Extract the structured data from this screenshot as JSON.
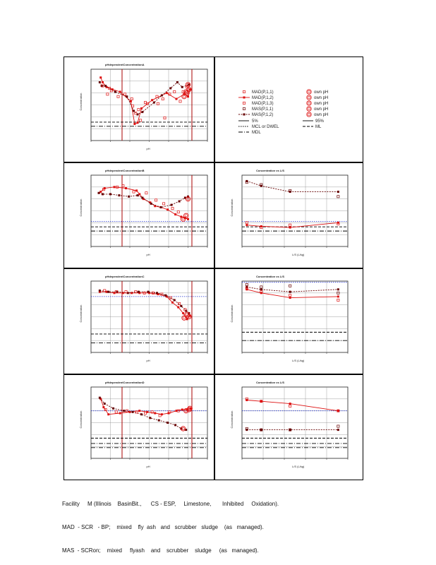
{
  "caption": {
    "line1": "Facility     M (Illinois    BasinBit.,      CS - ESP,     Limestone,       Inhibited     Oxidation).",
    "line2": "MAD  - SCR   - BP;    mixed    fly  ash   and   scrubber   sludge    (as   managed).",
    "line3": "MAS  - SCRon;    mixed     flyash    and    scrubber    sludge     (as   managed)."
  },
  "legend": {
    "series": [
      "MAD(P,1,1)",
      "MAD(P,1,2)",
      "MAD(P,1,3)",
      "MAS(P,1,1)",
      "MAS(P,1,2)"
    ],
    "own_ph": [
      "own pH",
      "own pH",
      "own pH",
      "own pH",
      "own pH"
    ],
    "lines": [
      "5%",
      "95%",
      "MCL or DWEL",
      "ML",
      "MDL"
    ]
  },
  "colors": {
    "mad": "#dd1111",
    "mas": "#660000",
    "blue": "#2233cc",
    "grid": "#888888"
  },
  "chart_data": [
    {
      "type": "scatter",
      "panel": "row1-left",
      "title": "pHdependentConcentrationA",
      "xlabel": "pH",
      "ylabel": "Concentration",
      "xlim": [
        2,
        14
      ],
      "ylim": [
        -3,
        3
      ],
      "vlines": [
        5.2,
        12.4
      ],
      "hlines_black": [
        -1.45,
        -1.8
      ],
      "series": [
        {
          "name": "MAD(P,1,2)",
          "style": "solid",
          "x": [
            3.0,
            3.2,
            3.6,
            4.2,
            5.0,
            6.1,
            6.5,
            6.8,
            7.2,
            8.3,
            9.8,
            10.8,
            11.6,
            12.0,
            12.2
          ],
          "y": [
            2.3,
            1.9,
            1.5,
            1.3,
            1.1,
            0.3,
            -1.6,
            -1.5,
            -0.3,
            0.4,
            1.0,
            0.5,
            0.9,
            0.7,
            1.3
          ]
        },
        {
          "name": "MAS(P,1,2)",
          "style": "dashed",
          "x": [
            2.9,
            3.1,
            3.5,
            4.5,
            5.7,
            6.4,
            6.8,
            7.3,
            8.5,
            9.3,
            10.2,
            10.9,
            11.4,
            12.1
          ],
          "y": [
            1.9,
            1.6,
            1.6,
            1.1,
            0.7,
            -0.5,
            -0.8,
            -0.6,
            0.2,
            0.8,
            1.4,
            1.9,
            1.5,
            1.7
          ]
        },
        {
          "name": "MAD(P,1,1)",
          "style": "marker",
          "x": [
            3.2,
            3.7,
            4.1,
            5.5,
            6.2,
            6.6,
            7.1,
            7.8,
            8.8,
            9.6,
            10.6,
            11.2
          ],
          "y": [
            1.6,
            0.9,
            1.2,
            0.9,
            0.5,
            -0.7,
            -1.3,
            0.1,
            0.7,
            -1.1,
            1.1,
            0.3
          ]
        },
        {
          "name": "MAD(P,1,3)",
          "style": "marker",
          "x": [
            3.9,
            4.8,
            6.3,
            6.9,
            7.6,
            8.9,
            9.4,
            10.1,
            11.5,
            11.9
          ],
          "y": [
            1.4,
            0.7,
            -0.1,
            -0.4,
            0.2,
            0.1,
            0.5,
            0.9,
            1.1,
            1.5
          ]
        },
        {
          "name": "own pH",
          "style": "circle",
          "x": [
            11.6,
            11.9,
            12.1,
            12.0,
            11.8
          ],
          "y": [
            0.7,
            1.0,
            1.3,
            1.7,
            1.1
          ]
        }
      ]
    },
    {
      "type": "scatter",
      "panel": "row2-left",
      "title": "pHdependentConcentrationB",
      "xlabel": "pH",
      "ylabel": "Concentration",
      "xlim": [
        2,
        14
      ],
      "ylim": [
        -3,
        3
      ],
      "vlines": [
        5.2,
        12.4
      ],
      "hlines_blue": [
        -0.9
      ],
      "hlines_black": [
        -1.35,
        -1.7
      ],
      "series": [
        {
          "name": "MAD(P,1,2)",
          "style": "solid",
          "x": [
            3.0,
            3.4,
            4.4,
            5.6,
            6.7,
            7.0,
            7.4,
            8.1,
            8.6,
            9.2,
            9.9,
            10.7,
            11.3,
            11.7,
            12.0
          ],
          "y": [
            1.6,
            1.9,
            2.0,
            1.9,
            1.7,
            1.4,
            1.0,
            0.7,
            0.4,
            0.3,
            0.1,
            -0.3,
            -0.5,
            -0.6,
            -0.7
          ]
        },
        {
          "name": "MAS(P,1,2)",
          "style": "dashed",
          "x": [
            2.8,
            3.2,
            4.0,
            4.9,
            5.9,
            6.8,
            7.3,
            8.2,
            9.2,
            10.3,
            11.1,
            11.7,
            12.0
          ],
          "y": [
            1.5,
            1.4,
            1.4,
            1.3,
            1.2,
            1.3,
            1.1,
            0.6,
            0.3,
            0.5,
            0.8,
            1.1,
            1.2
          ]
        },
        {
          "name": "MAD(P,1,1)",
          "style": "marker",
          "x": [
            3.3,
            4.7,
            5.3,
            6.4,
            7.7,
            8.7,
            9.5,
            10.4,
            11.0
          ],
          "y": [
            1.8,
            2.0,
            2.1,
            1.6,
            1.5,
            0.9,
            0.6,
            0.2,
            -0.1
          ]
        },
        {
          "name": "own pH",
          "style": "circle",
          "x": [
            11.5,
            11.8,
            12.0
          ],
          "y": [
            -0.7,
            -0.4,
            1.0
          ]
        }
      ]
    },
    {
      "type": "line",
      "panel": "row2-right",
      "title": "Concentration vs L/S",
      "xlabel": "L/S   (L/kg)",
      "ylabel": "Concentration",
      "xlim": [
        0,
        11
      ],
      "ylim": [
        -3,
        3
      ],
      "hlines_blue": [
        -0.9
      ],
      "hlines_black": [
        -1.35,
        -1.7
      ],
      "series": [
        {
          "name": "MAS",
          "style": "dashed",
          "x": [
            0.5,
            2,
            5,
            10
          ],
          "y": [
            2.5,
            2.1,
            1.6,
            1.6
          ]
        },
        {
          "name": "MAD",
          "style": "solid",
          "x": [
            0.5,
            2,
            5,
            10
          ],
          "y": [
            -1.2,
            -1.3,
            -1.4,
            -1.0
          ]
        },
        {
          "name": "MAD-marker",
          "style": "marker",
          "x": [
            0.5,
            2,
            5,
            10
          ],
          "y": [
            -1.0,
            -1.4,
            -1.2,
            -1.1
          ]
        },
        {
          "name": "MAS-marker",
          "style": "marker",
          "x": [
            0.5,
            2,
            5,
            10
          ],
          "y": [
            2.4,
            2.2,
            1.7,
            1.2
          ]
        }
      ]
    },
    {
      "type": "scatter",
      "panel": "row3-left",
      "title": "pHdependentConcentrationC",
      "xlabel": "pH",
      "ylabel": "Concentration",
      "xlim": [
        2,
        14
      ],
      "ylim": [
        -3,
        3
      ],
      "vlines": [
        5.2,
        12.4
      ],
      "hlines_blue": [
        1.7
      ],
      "hlines_black": [
        -1.45,
        -2.2
      ],
      "series": [
        {
          "name": "MAD(P,1,2)",
          "style": "solid",
          "x": [
            2.9,
            3.6,
            4.4,
            5.3,
            6.2,
            7.0,
            8.0,
            8.9,
            9.8,
            10.4,
            11.0,
            11.5,
            11.9,
            12.2
          ],
          "y": [
            2.1,
            2.1,
            2.0,
            2.0,
            2.0,
            2.0,
            2.0,
            1.9,
            1.7,
            1.2,
            0.8,
            0.3,
            -0.2,
            0.1
          ]
        },
        {
          "name": "MAS(P,1,2)",
          "style": "dashed",
          "x": [
            2.9,
            3.8,
            4.7,
            5.8,
            6.9,
            7.9,
            8.8,
            9.7,
            10.6,
            11.3,
            11.8,
            12.1
          ],
          "y": [
            2.2,
            2.1,
            2.1,
            2.0,
            2.1,
            2.1,
            2.0,
            1.8,
            1.4,
            0.9,
            0.5,
            0.3
          ]
        },
        {
          "name": "MAD(P,1,1)",
          "style": "marker",
          "x": [
            3.4,
            4.6,
            5.6,
            6.6,
            7.5,
            8.4,
            9.3,
            10.2,
            11.1,
            11.7
          ],
          "y": [
            2.2,
            2.1,
            2.1,
            2.1,
            2.0,
            2.0,
            1.9,
            1.6,
            1.1,
            0.6
          ]
        },
        {
          "name": "own pH",
          "style": "circle",
          "x": [
            11.6,
            11.9,
            12.1
          ],
          "y": [
            -0.1,
            0.2,
            0.0
          ]
        }
      ]
    },
    {
      "type": "line",
      "panel": "row3-right",
      "title": "Concentration vs L/S",
      "xlabel": "L/S   (L/kg)",
      "ylabel": "Concentration",
      "xlim": [
        0,
        11
      ],
      "ylim": [
        -3,
        3
      ],
      "hlines_blue": [
        2.9
      ],
      "hlines_black": [
        -1.3,
        -2.0
      ],
      "series": [
        {
          "name": "MAS",
          "style": "dashed",
          "x": [
            0.5,
            2,
            5,
            10
          ],
          "y": [
            2.5,
            2.3,
            2.1,
            2.3
          ]
        },
        {
          "name": "MAD",
          "style": "solid",
          "x": [
            0.5,
            2,
            5,
            10
          ],
          "y": [
            2.3,
            2.0,
            1.6,
            1.7
          ]
        },
        {
          "name": "MAD-marker",
          "style": "marker",
          "x": [
            0.5,
            2,
            5,
            10
          ],
          "y": [
            2.4,
            2.1,
            1.8,
            1.4
          ]
        },
        {
          "name": "MAS-marker",
          "style": "marker",
          "x": [
            0.5,
            2,
            5,
            10
          ],
          "y": [
            2.7,
            2.5,
            2.6,
            2.0
          ]
        }
      ]
    },
    {
      "type": "scatter",
      "panel": "row4-left",
      "title": "pHdependentConcentrationD",
      "xlabel": "pH",
      "ylabel": "Concentration",
      "xlim": [
        2,
        14
      ],
      "ylim": [
        -3,
        3
      ],
      "vlines": [
        5.2,
        12.4
      ],
      "hlines_blue": [
        1.0
      ],
      "hlines_black": [
        -1.3,
        -1.75,
        -2.1
      ],
      "series": [
        {
          "name": "MAD(P,1,2)",
          "style": "solid",
          "x": [
            3.0,
            3.3,
            3.8,
            5.0,
            6.0,
            7.0,
            7.8,
            8.6,
            9.3,
            10.0,
            10.8,
            11.4,
            11.9,
            12.3
          ],
          "y": [
            2.0,
            1.3,
            0.7,
            0.8,
            0.9,
            1.0,
            0.9,
            0.8,
            0.7,
            0.8,
            1.0,
            1.1,
            1.1,
            1.2
          ]
        },
        {
          "name": "MAS(P,1,2)",
          "style": "dashed",
          "x": [
            2.9,
            3.4,
            4.3,
            5.4,
            6.3,
            7.2,
            8.1,
            9.0,
            9.9,
            10.7,
            11.3,
            11.8
          ],
          "y": [
            2.1,
            1.6,
            1.2,
            1.0,
            0.9,
            0.7,
            0.4,
            0.2,
            0.0,
            -0.2,
            -0.5,
            -0.6
          ]
        },
        {
          "name": "MAD(P,1,1)",
          "style": "marker",
          "x": [
            3.5,
            4.6,
            5.7,
            6.7,
            7.6,
            8.3,
            9.1,
            10.1,
            11.0
          ],
          "y": [
            1.1,
            0.9,
            1.0,
            0.9,
            0.8,
            0.9,
            0.6,
            0.9,
            1.0
          ]
        },
        {
          "name": "own pH",
          "style": "circle",
          "x": [
            11.5,
            11.8,
            12.1,
            12.2
          ],
          "y": [
            -0.5,
            1.0,
            1.1,
            1.2
          ]
        }
      ]
    },
    {
      "type": "line",
      "panel": "row4-right",
      "title": "Concentration vs L/S",
      "xlabel": "L/S   (L/kg)",
      "ylabel": "Concentration",
      "xlim": [
        0,
        11
      ],
      "ylim": [
        -3,
        3
      ],
      "hlines_blue": [
        1.0
      ],
      "hlines_black": [
        -1.3,
        -1.75,
        -2.1
      ],
      "series": [
        {
          "name": "MAD",
          "style": "solid",
          "x": [
            0.5,
            2,
            5,
            10
          ],
          "y": [
            1.9,
            1.8,
            1.6,
            1.0
          ]
        },
        {
          "name": "MAS",
          "style": "dashed",
          "x": [
            0.5,
            2,
            5,
            10
          ],
          "y": [
            -0.6,
            -0.6,
            -0.6,
            -0.6
          ]
        },
        {
          "name": "MAD-marker",
          "style": "marker",
          "x": [
            0.5,
            2,
            5,
            10
          ],
          "y": [
            2.0,
            1.8,
            1.4,
            1.0
          ]
        },
        {
          "name": "MAS-marker",
          "style": "marker",
          "x": [
            0.5,
            2,
            5,
            10
          ],
          "y": [
            -0.5,
            -0.6,
            -0.6,
            -0.3
          ]
        }
      ]
    }
  ]
}
